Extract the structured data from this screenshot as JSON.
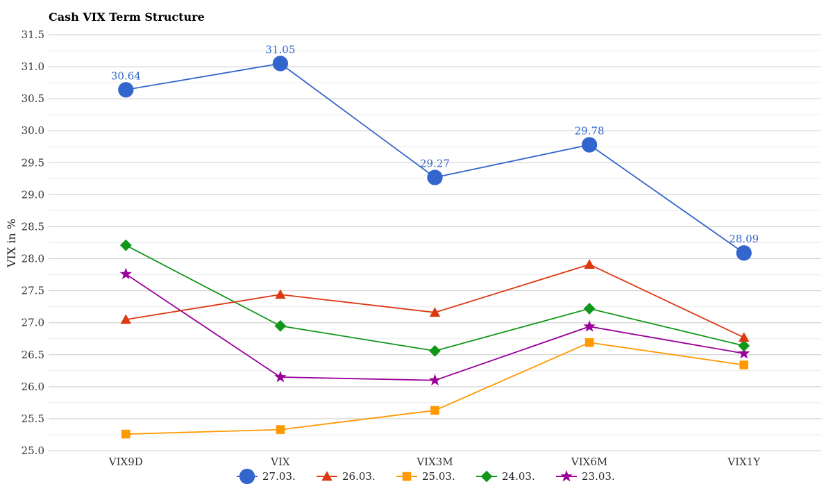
{
  "chart_data": {
    "type": "line",
    "title": "Cash VIX Term Structure",
    "xlabel": "",
    "ylabel": "VIX in %",
    "ylim": [
      25.0,
      31.5
    ],
    "yticks": [
      "25.0",
      "25.5",
      "26.0",
      "26.5",
      "27.0",
      "27.5",
      "28.0",
      "28.5",
      "29.0",
      "29.5",
      "30.0",
      "30.5",
      "31.0",
      "31.5"
    ],
    "categories": [
      "VIX9D",
      "VIX",
      "VIX3M",
      "VIX6M",
      "VIX1Y"
    ],
    "grid": true,
    "legend_position": "bottom",
    "series": [
      {
        "name": "27.03.",
        "values": [
          30.64,
          31.05,
          29.27,
          29.78,
          28.09
        ],
        "color": "#3366cc",
        "marker": "circle",
        "show_labels": true,
        "labels": [
          "30.64",
          "31.05",
          "29.27",
          "29.78",
          "28.09"
        ]
      },
      {
        "name": "26.03.",
        "values": [
          27.05,
          27.44,
          27.16,
          27.91,
          26.77
        ],
        "color": "#dc3912",
        "marker": "triangle",
        "show_labels": false
      },
      {
        "name": "25.03.",
        "values": [
          25.26,
          25.33,
          25.63,
          26.69,
          26.34
        ],
        "color": "#ff9900",
        "marker": "square",
        "show_labels": false
      },
      {
        "name": "24.03.",
        "values": [
          28.21,
          26.95,
          26.56,
          27.22,
          26.64
        ],
        "color": "#109618",
        "marker": "diamond",
        "show_labels": false
      },
      {
        "name": "23.03.",
        "values": [
          27.76,
          26.15,
          26.1,
          26.94,
          26.52
        ],
        "color": "#990099",
        "marker": "star",
        "show_labels": false
      }
    ]
  }
}
